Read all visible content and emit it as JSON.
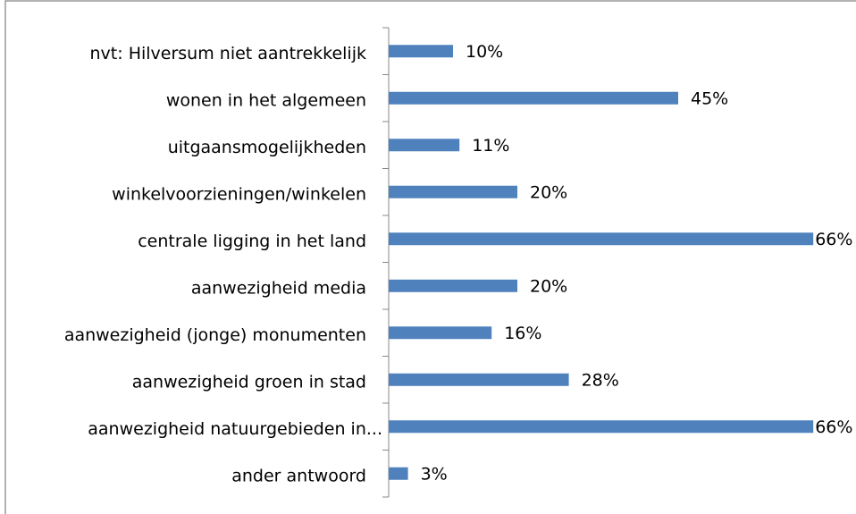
{
  "chart_data": {
    "type": "bar",
    "orientation": "horizontal",
    "color": "#4f81bd",
    "categories": [
      "nvt: Hilversum niet aantrekkelijk",
      "wonen in het algemeen",
      "uitgaansmogelijkheden",
      "winkelvoorzieningen/winkelen",
      "centrale ligging in het land",
      "aanwezigheid media",
      "aanwezigheid (jonge) monumenten",
      "aanwezigheid groen in stad",
      "aanwezigheid natuurgebieden in...",
      "ander antwoord"
    ],
    "values": [
      10,
      45,
      11,
      20,
      66,
      20,
      16,
      28,
      66,
      3
    ],
    "value_labels": [
      "10%",
      "45%",
      "11%",
      "20%",
      "66%",
      "20%",
      "16%",
      "28%",
      "66%",
      "3%"
    ]
  }
}
